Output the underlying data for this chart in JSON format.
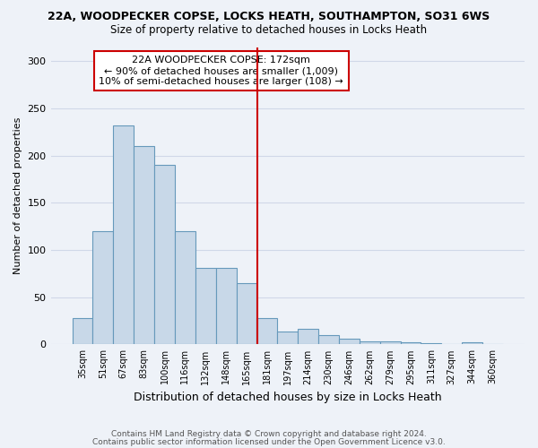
{
  "title": "22A, WOODPECKER COPSE, LOCKS HEATH, SOUTHAMPTON, SO31 6WS",
  "subtitle": "Size of property relative to detached houses in Locks Heath",
  "xlabel": "Distribution of detached houses by size in Locks Heath",
  "ylabel": "Number of detached properties",
  "bar_labels": [
    "35sqm",
    "51sqm",
    "67sqm",
    "83sqm",
    "100sqm",
    "116sqm",
    "132sqm",
    "148sqm",
    "165sqm",
    "181sqm",
    "197sqm",
    "214sqm",
    "230sqm",
    "246sqm",
    "262sqm",
    "279sqm",
    "295sqm",
    "311sqm",
    "327sqm",
    "344sqm",
    "360sqm"
  ],
  "bar_heights": [
    28,
    120,
    232,
    210,
    190,
    120,
    81,
    81,
    65,
    28,
    14,
    17,
    10,
    6,
    3,
    3,
    2,
    1,
    0,
    2,
    0
  ],
  "bar_color": "#c8d8e8",
  "bar_edge_color": "#6699bb",
  "vline_x": 8.53,
  "vline_color": "#cc0000",
  "annotation_title": "22A WOODPECKER COPSE: 172sqm",
  "annotation_line1": "← 90% of detached houses are smaller (1,009)",
  "annotation_line2": "10% of semi-detached houses are larger (108) →",
  "annotation_box_color": "#cc0000",
  "annotation_bg": "#ffffff",
  "ylim": [
    0,
    315
  ],
  "yticks": [
    0,
    50,
    100,
    150,
    200,
    250,
    300
  ],
  "grid_color": "#d0d8e8",
  "bg_color": "#eef2f8",
  "footer1": "Contains HM Land Registry data © Crown copyright and database right 2024.",
  "footer2": "Contains public sector information licensed under the Open Government Licence v3.0."
}
